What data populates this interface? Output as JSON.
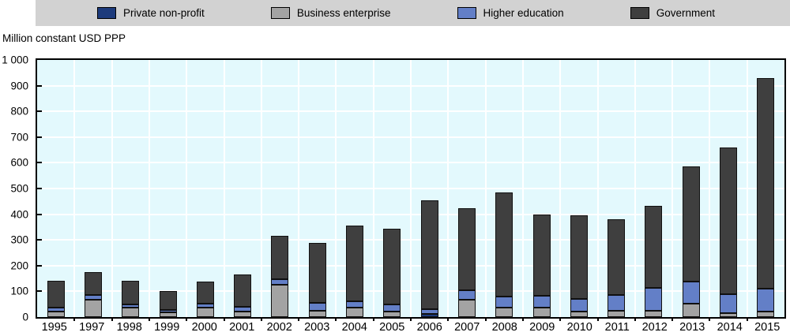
{
  "axis_title": "Million constant USD PPP",
  "colors": {
    "plot_background": "#e3f9fd",
    "gridline": "#ffffff",
    "legend_background": "#d2d2d2",
    "axis": "#000000"
  },
  "legend": {
    "position": "top",
    "items": [
      {
        "label": "Private non-profit",
        "color": "#1d3b7c"
      },
      {
        "label": "Business enterprise",
        "color": "#a3a3a3"
      },
      {
        "label": "Higher education",
        "color": "#637fc7"
      },
      {
        "label": "Government",
        "color": "#3f3f3f"
      }
    ]
  },
  "chart_data": {
    "type": "bar",
    "stacked": true,
    "title": "",
    "xlabel": "",
    "ylabel": "Million constant USD PPP",
    "ylim": [
      0,
      1000
    ],
    "ytick_step": 100,
    "ytick_labels": [
      "0",
      "100",
      "200",
      "300",
      "400",
      "500",
      "600",
      "700",
      "800",
      "900",
      "1 000"
    ],
    "grid": true,
    "legend_position": "top",
    "categories": [
      "1995",
      "1997",
      "1998",
      "1999",
      "2000",
      "2001",
      "2002",
      "2003",
      "2004",
      "2005",
      "2006",
      "2007",
      "2008",
      "2009",
      "2010",
      "2011",
      "2012",
      "2013",
      "2014",
      "2015"
    ],
    "series": [
      {
        "name": "Private non-profit",
        "color": "#1d3b7c",
        "values": [
          0,
          0,
          0,
          0,
          0,
          0,
          0,
          0,
          0,
          0,
          12,
          0,
          0,
          0,
          0,
          0,
          0,
          0,
          0,
          0
        ]
      },
      {
        "name": "Business enterprise",
        "color": "#a3a3a3",
        "values": [
          22,
          68,
          36,
          17,
          36,
          22,
          127,
          24,
          36,
          20,
          0,
          66,
          36,
          36,
          20,
          25,
          25,
          53,
          15,
          22
        ]
      },
      {
        "name": "Higher education",
        "color": "#637fc7",
        "values": [
          15,
          17,
          12,
          10,
          15,
          18,
          20,
          30,
          25,
          28,
          18,
          38,
          45,
          47,
          51,
          60,
          89,
          84,
          73,
          90
        ]
      },
      {
        "name": "Government",
        "color": "#3f3f3f",
        "values": [
          103,
          90,
          92,
          73,
          86,
          125,
          168,
          236,
          294,
          296,
          425,
          318,
          404,
          317,
          324,
          295,
          320,
          449,
          572,
          818
        ]
      }
    ]
  }
}
